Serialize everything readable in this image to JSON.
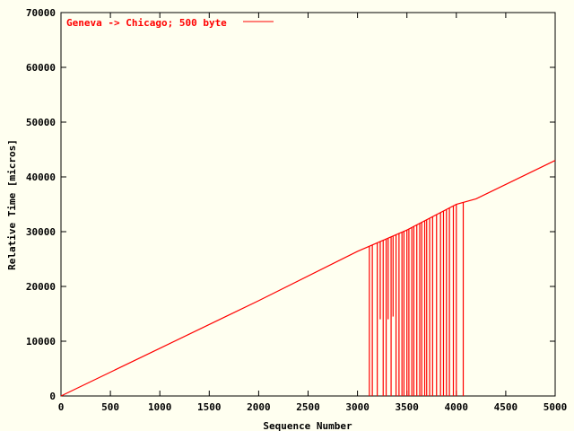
{
  "chart_data": {
    "type": "line",
    "xlabel": "Sequence Number",
    "ylabel": "Relative Time [micros]",
    "xlim": [
      0,
      5000
    ],
    "ylim": [
      0,
      70000
    ],
    "xticks": [
      0,
      500,
      1000,
      1500,
      2000,
      2500,
      3000,
      3500,
      4000,
      4500,
      5000
    ],
    "yticks": [
      0,
      10000,
      20000,
      30000,
      40000,
      50000,
      60000,
      70000
    ],
    "xtick_labels": [
      "0",
      "500",
      "1000",
      "1500",
      "2000",
      "2500",
      "3000",
      "3500",
      "4000",
      "4500",
      "5000"
    ],
    "ytick_labels": [
      "0",
      "10000",
      "20000",
      "30000",
      "40000",
      "50000",
      "60000",
      "70000"
    ],
    "grid": false,
    "legend_position": "top-left",
    "series": [
      {
        "name": "Geneva -> Chicago; 500 byte",
        "color": "#ff0000",
        "trend_points": [
          {
            "x": 0,
            "y": 0
          },
          {
            "x": 1000,
            "y": 8700
          },
          {
            "x": 2000,
            "y": 17400
          },
          {
            "x": 3000,
            "y": 26400
          },
          {
            "x": 3500,
            "y": 30300
          },
          {
            "x": 4000,
            "y": 35000
          },
          {
            "x": 4200,
            "y": 36000
          },
          {
            "x": 5000,
            "y": 43000
          }
        ],
        "dropouts": [
          {
            "x": 3120,
            "y": 0
          },
          {
            "x": 3150,
            "y": 0
          },
          {
            "x": 3200,
            "y": 0
          },
          {
            "x": 3230,
            "y": 14000
          },
          {
            "x": 3260,
            "y": 0
          },
          {
            "x": 3290,
            "y": 0
          },
          {
            "x": 3310,
            "y": 14000
          },
          {
            "x": 3340,
            "y": 0
          },
          {
            "x": 3360,
            "y": 14500
          },
          {
            "x": 3390,
            "y": 0
          },
          {
            "x": 3420,
            "y": 0
          },
          {
            "x": 3450,
            "y": 0
          },
          {
            "x": 3470,
            "y": 0
          },
          {
            "x": 3500,
            "y": 0
          },
          {
            "x": 3520,
            "y": 0
          },
          {
            "x": 3550,
            "y": 0
          },
          {
            "x": 3570,
            "y": 0
          },
          {
            "x": 3600,
            "y": 0
          },
          {
            "x": 3630,
            "y": 0
          },
          {
            "x": 3650,
            "y": 0
          },
          {
            "x": 3680,
            "y": 0
          },
          {
            "x": 3700,
            "y": 0
          },
          {
            "x": 3730,
            "y": 0
          },
          {
            "x": 3760,
            "y": 0
          },
          {
            "x": 3800,
            "y": 0
          },
          {
            "x": 3840,
            "y": 0
          },
          {
            "x": 3870,
            "y": 0
          },
          {
            "x": 3900,
            "y": 0
          },
          {
            "x": 3930,
            "y": 0
          },
          {
            "x": 3970,
            "y": 0
          },
          {
            "x": 4000,
            "y": 0
          },
          {
            "x": 4070,
            "y": 0
          }
        ]
      }
    ]
  }
}
